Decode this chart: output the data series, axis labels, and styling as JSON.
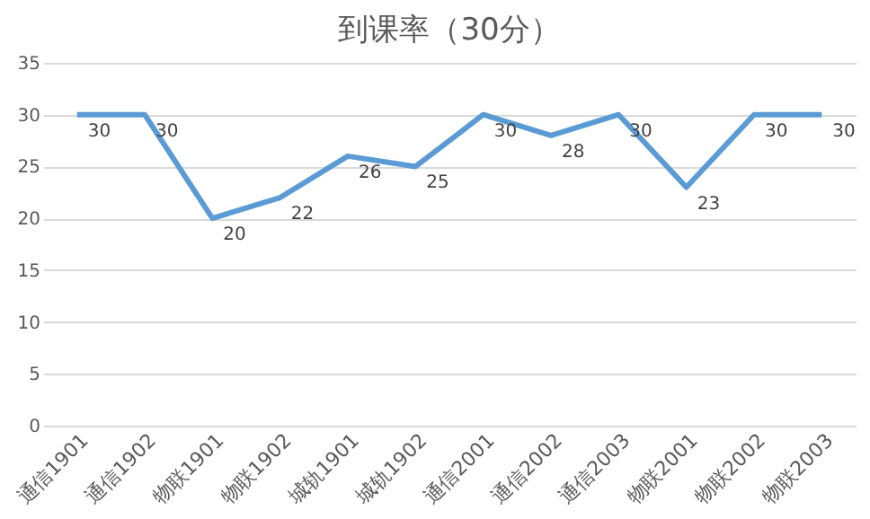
{
  "chart_data": {
    "type": "line",
    "title": "到课率（30分）",
    "categories": [
      "通信1901",
      "通信1902",
      "物联1901",
      "物联1902",
      "城轨1901",
      "城轨1902",
      "通信2001",
      "通信2002",
      "通信2003",
      "物联2001",
      "物联2002",
      "物联2003"
    ],
    "series": [
      {
        "color": "#5b9bd5",
        "values": [
          30,
          30,
          20,
          22,
          26,
          25,
          30,
          28,
          30,
          23,
          30,
          30
        ]
      }
    ],
    "ylim": [
      0,
      35
    ],
    "yticks": [
      0,
      5,
      10,
      15,
      20,
      25,
      30,
      35
    ],
    "grid": "y",
    "data_labels": true,
    "legend": false,
    "marker": "none",
    "line_style": "solid"
  }
}
